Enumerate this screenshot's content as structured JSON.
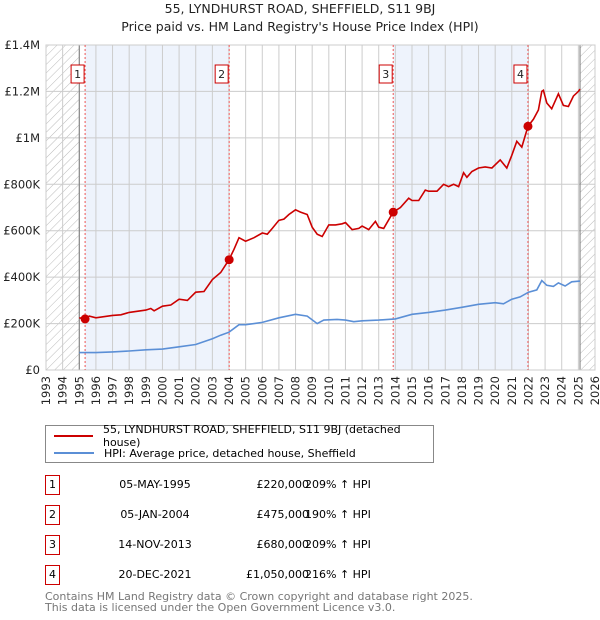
{
  "chart_data": {
    "type": "line",
    "title": "55, LYNDHURST ROAD, SHEFFIELD, S11 9BJ",
    "subtitle": "Price paid vs. HM Land Registry's House Price Index (HPI)",
    "xlim": [
      1993,
      2026
    ],
    "ylim": [
      0,
      1400000
    ],
    "x_ticks": [
      "1993",
      "1994",
      "1995",
      "1996",
      "1997",
      "1998",
      "1999",
      "2000",
      "2001",
      "2002",
      "2003",
      "2004",
      "2005",
      "2006",
      "2007",
      "2008",
      "2009",
      "2010",
      "2011",
      "2012",
      "2013",
      "2014",
      "2015",
      "2016",
      "2017",
      "2018",
      "2019",
      "2020",
      "2021",
      "2022",
      "2023",
      "2024",
      "2025",
      "2026"
    ],
    "y_ticks": [
      {
        "v": 0,
        "label": "£0"
      },
      {
        "v": 200000,
        "label": "£200K"
      },
      {
        "v": 400000,
        "label": "£400K"
      },
      {
        "v": 600000,
        "label": "£600K"
      },
      {
        "v": 800000,
        "label": "£800K"
      },
      {
        "v": 1000000,
        "label": "£1M"
      },
      {
        "v": 1200000,
        "label": "£1.2M"
      },
      {
        "v": 1400000,
        "label": "£1.4M"
      }
    ],
    "grid": true,
    "data_range": [
      1995,
      2025.1
    ],
    "series": [
      {
        "name": "55, LYNDHURST ROAD, SHEFFIELD, S11 9BJ (detached house)",
        "color": "#cc0000",
        "x": [
          1995,
          1995.35,
          1995.6,
          1996,
          1997,
          1997.5,
          1998,
          1999,
          1999.3,
          1999.5,
          2000,
          2000.5,
          2001,
          2001.5,
          2002,
          2002.5,
          2003,
          2003.5,
          2004,
          2004.3,
          2004.6,
          2005,
          2005.5,
          2006,
          2006.3,
          2006.6,
          2007,
          2007.3,
          2007.6,
          2008,
          2008.3,
          2008.7,
          2009,
          2009.3,
          2009.6,
          2010,
          2010.4,
          2010.8,
          2011,
          2011.4,
          2011.8,
          2012,
          2012.4,
          2012.8,
          2013,
          2013.3,
          2013.87,
          2014.3,
          2014.8,
          2015,
          2015.4,
          2015.8,
          2016,
          2016.5,
          2016.9,
          2017.2,
          2017.5,
          2017.8,
          2018.1,
          2018.3,
          2018.6,
          2019,
          2019.4,
          2019.8,
          2020.3,
          2020.7,
          2021,
          2021.3,
          2021.6,
          2021.97,
          2022.3,
          2022.6,
          2022.8,
          2022.9,
          2023.1,
          2023.4,
          2023.8,
          2024.1,
          2024.4,
          2024.7,
          2025,
          2025.1
        ],
        "y": [
          225000,
          220000,
          232000,
          225000,
          235000,
          238000,
          248000,
          258000,
          265000,
          255000,
          275000,
          280000,
          305000,
          300000,
          335000,
          338000,
          390000,
          420000,
          475000,
          520000,
          570000,
          555000,
          570000,
          590000,
          585000,
          610000,
          645000,
          650000,
          670000,
          690000,
          680000,
          670000,
          615000,
          585000,
          575000,
          625000,
          625000,
          630000,
          635000,
          605000,
          610000,
          620000,
          605000,
          640000,
          615000,
          610000,
          680000,
          700000,
          740000,
          730000,
          730000,
          775000,
          770000,
          770000,
          800000,
          790000,
          800000,
          790000,
          850000,
          830000,
          855000,
          870000,
          875000,
          870000,
          905000,
          870000,
          925000,
          985000,
          960000,
          1050000,
          1080000,
          1120000,
          1200000,
          1205000,
          1150000,
          1125000,
          1190000,
          1140000,
          1135000,
          1180000,
          1200000,
          1210000
        ]
      },
      {
        "name": "HPI: Average price, detached house, Sheffield",
        "color": "#5b8fd6",
        "x": [
          1995,
          1996,
          1997,
          1998,
          1999,
          2000,
          2001,
          2002,
          2003,
          2003.5,
          2004,
          2004.6,
          2005,
          2006,
          2007,
          2008,
          2008.7,
          2009.3,
          2009.7,
          2010.5,
          2011,
          2011.5,
          2012,
          2013,
          2014,
          2015,
          2016,
          2017,
          2018,
          2019,
          2020,
          2020.5,
          2021,
          2021.5,
          2022,
          2022.5,
          2022.8,
          2023.1,
          2023.5,
          2023.8,
          2024.2,
          2024.6,
          2025.1
        ],
        "y": [
          75000,
          75000,
          78000,
          82000,
          87000,
          90000,
          100000,
          110000,
          135000,
          150000,
          163000,
          195000,
          195000,
          205000,
          225000,
          240000,
          232000,
          200000,
          215000,
          218000,
          215000,
          208000,
          212000,
          215000,
          220000,
          240000,
          248000,
          258000,
          270000,
          283000,
          290000,
          285000,
          305000,
          315000,
          335000,
          345000,
          385000,
          365000,
          360000,
          375000,
          362000,
          380000,
          383000
        ]
      }
    ],
    "sales": [
      {
        "n": "1",
        "x": 1995.35,
        "price": 220000
      },
      {
        "n": "2",
        "x": 2004.01,
        "price": 475000
      },
      {
        "n": "3",
        "x": 2013.87,
        "price": 680000
      },
      {
        "n": "4",
        "x": 2021.97,
        "price": 1050000
      }
    ],
    "shaded_bands": [
      [
        1995.35,
        2004.01
      ],
      [
        2013.87,
        2021.97
      ]
    ]
  },
  "title": "55, LYNDHURST ROAD, SHEFFIELD, S11 9BJ",
  "subtitle": "Price paid vs. HM Land Registry's House Price Index (HPI)",
  "legend": {
    "property": "55, LYNDHURST ROAD, SHEFFIELD, S11 9BJ (detached house)",
    "hpi": "HPI: Average price, detached house, Sheffield"
  },
  "sales_table": [
    {
      "n": "1",
      "date": "05-MAY-1995",
      "price": "£220,000",
      "hpi": "209% ↑ HPI"
    },
    {
      "n": "2",
      "date": "05-JAN-2004",
      "price": "£475,000",
      "hpi": "190% ↑ HPI"
    },
    {
      "n": "3",
      "date": "14-NOV-2013",
      "price": "£680,000",
      "hpi": "209% ↑ HPI"
    },
    {
      "n": "4",
      "date": "20-DEC-2021",
      "price": "£1,050,000",
      "hpi": "216% ↑ HPI"
    }
  ],
  "footer": {
    "line1": "Contains HM Land Registry data © Crown copyright and database right 2025.",
    "line2": "This data is licensed under the Open Government Licence v3.0."
  }
}
